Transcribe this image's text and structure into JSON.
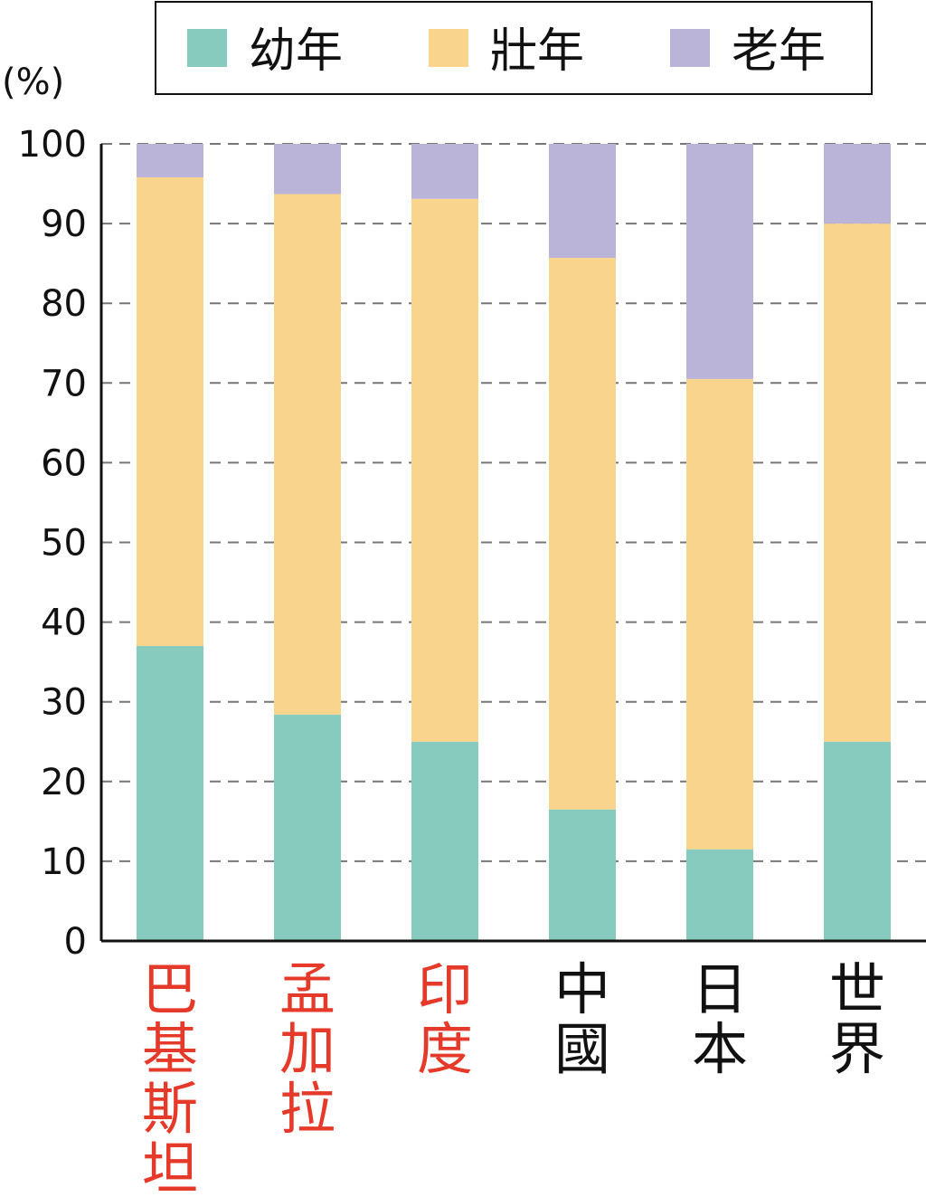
{
  "chart_data": {
    "type": "bar",
    "stacked": true,
    "ylabel": "(%)",
    "ylim": [
      0,
      100
    ],
    "yticks": [
      0,
      10,
      20,
      30,
      40,
      50,
      60,
      70,
      80,
      90,
      100
    ],
    "grid": "dashed horizontal",
    "legend_position": "top",
    "categories": [
      "巴基斯坦",
      "孟加拉",
      "印度",
      "中國",
      "日本",
      "世界"
    ],
    "category_colors": [
      "#e53a2a",
      "#e53a2a",
      "#e53a2a",
      "#111111",
      "#111111",
      "#111111"
    ],
    "series": [
      {
        "name": "幼年",
        "color": "#86cbbd",
        "values": [
          37,
          28.4,
          25,
          16.5,
          11.5,
          25
        ]
      },
      {
        "name": "壯年",
        "color": "#f9d48d",
        "values": [
          58.8,
          65.3,
          68.1,
          69.2,
          59,
          65
        ]
      },
      {
        "name": "老年",
        "color": "#bab4d9",
        "values": [
          4.2,
          6.3,
          6.9,
          14.3,
          29.5,
          10
        ]
      }
    ]
  }
}
